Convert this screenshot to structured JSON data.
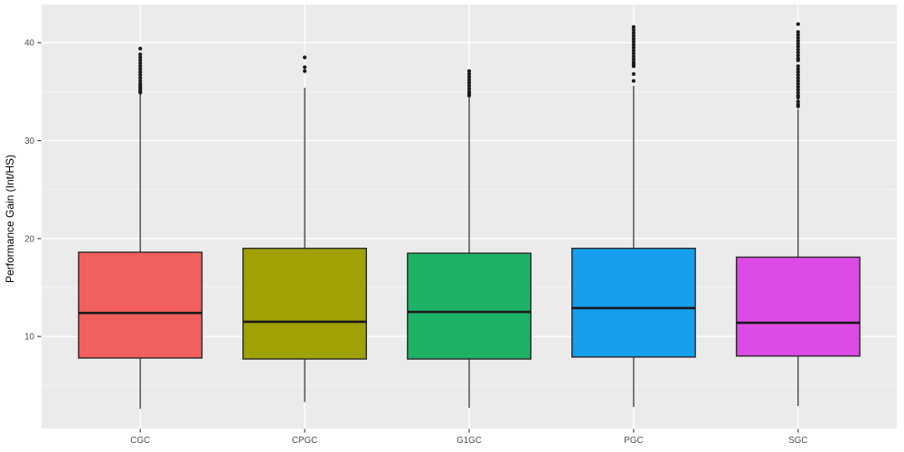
{
  "styles": {
    "page_bg": "#FFFFFF",
    "panel_bg": "#EBEBEB",
    "grid_major": "#FFFFFF",
    "grid_minor": "#F6F6F6",
    "box_stroke": "#2A2A2A",
    "median_color": "#1A1A1A",
    "outlier_color": "#1C1C1C",
    "tick_mark_color": "#333333",
    "tick_label_color": "#4D4D4D",
    "axis_title_color": "#000000"
  },
  "chart_data": {
    "type": "boxplot",
    "ylabel": "Performance Gain (Int/HS)",
    "categories": [
      "CGC",
      "CPGC",
      "G1GC",
      "PGC",
      "SGC"
    ],
    "yticks": [
      10,
      20,
      30,
      40
    ],
    "yminor": [
      5,
      15,
      25,
      35
    ],
    "ylim": [
      0.6,
      43.9
    ],
    "grid": "major-and-minor",
    "legend": "none",
    "series": [
      {
        "name": "CGC",
        "color": "#F1605D",
        "whisker_low": 2.6,
        "q1": 7.8,
        "median": 12.4,
        "q3": 18.6,
        "whisker_high": 34.8,
        "outliers": [
          39.4,
          38.8,
          38.5,
          38.2,
          37.9,
          37.6,
          37.3,
          37.0,
          36.7,
          36.4,
          36.1,
          35.8,
          35.6,
          35.4,
          35.2,
          35.0,
          34.9
        ]
      },
      {
        "name": "CPGC",
        "color": "#9FA104",
        "whisker_low": 3.3,
        "q1": 7.7,
        "median": 11.5,
        "q3": 19.0,
        "whisker_high": 35.4,
        "outliers": [
          38.5,
          37.5,
          37.1
        ]
      },
      {
        "name": "G1GC",
        "color": "#1EB266",
        "whisker_low": 2.7,
        "q1": 7.7,
        "median": 12.5,
        "q3": 18.5,
        "whisker_high": 34.4,
        "outliers": [
          37.1,
          36.8,
          36.5,
          36.2,
          35.9,
          35.6,
          35.3,
          35.0,
          34.8,
          34.6
        ]
      },
      {
        "name": "PGC",
        "color": "#169FEC",
        "whisker_low": 2.8,
        "q1": 7.9,
        "median": 12.9,
        "q3": 19.0,
        "whisker_high": 35.6,
        "outliers": [
          41.6,
          41.3,
          41.0,
          40.7,
          40.4,
          40.1,
          39.8,
          39.5,
          39.2,
          38.9,
          38.6,
          38.3,
          38.0,
          37.8,
          37.6,
          36.8,
          36.1
        ]
      },
      {
        "name": "SGC",
        "color": "#DC4BE5",
        "whisker_low": 2.9,
        "q1": 8.0,
        "median": 11.4,
        "q3": 18.1,
        "whisker_high": 33.2,
        "outliers": [
          41.9,
          41.1,
          40.8,
          40.5,
          40.2,
          39.9,
          39.6,
          39.3,
          39.0,
          38.7,
          38.4,
          38.2,
          37.6,
          37.3,
          37.0,
          36.7,
          36.4,
          36.1,
          35.8,
          35.5,
          35.2,
          34.9,
          34.6,
          34.4,
          34.0,
          33.7,
          33.5
        ]
      }
    ]
  }
}
